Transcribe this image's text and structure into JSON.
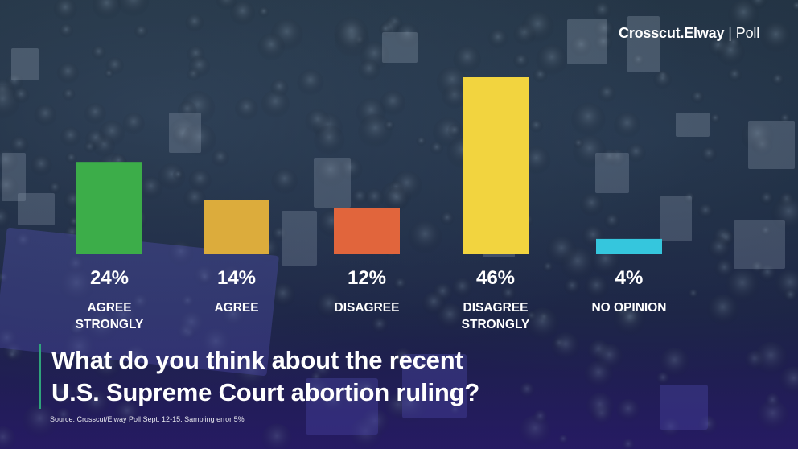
{
  "header": {
    "brand": "Crosscut.Elway",
    "separator": "|",
    "suffix": "Poll"
  },
  "chart_data": {
    "type": "bar",
    "categories": [
      "AGREE STRONGLY",
      "AGREE",
      "DISAGREE",
      "DISAGREE STRONGLY",
      "NO OPINION"
    ],
    "category_lines": [
      [
        "AGREE",
        "STRONGLY"
      ],
      [
        "AGREE"
      ],
      [
        "DISAGREE"
      ],
      [
        "DISAGREE",
        "STRONGLY"
      ],
      [
        "NO OPINION"
      ]
    ],
    "values": [
      24,
      14,
      12,
      46,
      4
    ],
    "value_labels": [
      "24%",
      "14%",
      "12%",
      "46%",
      "4%"
    ],
    "colors": [
      "#3cad49",
      "#dcac3c",
      "#e1653c",
      "#f2d43f",
      "#35c6dd"
    ],
    "ylim": [
      0,
      46
    ],
    "grid": false,
    "legend": "none",
    "title": "What do you think about the recent U.S. Supreme Court abortion ruling?",
    "xlabel": "",
    "ylabel": ""
  },
  "question": {
    "line1": "What do you think about the recent",
    "line2": "U.S. Supreme Court abortion ruling?"
  },
  "source": "Source: Crosscut/Elway Poll Sept. 12-15. Sampling error 5%"
}
